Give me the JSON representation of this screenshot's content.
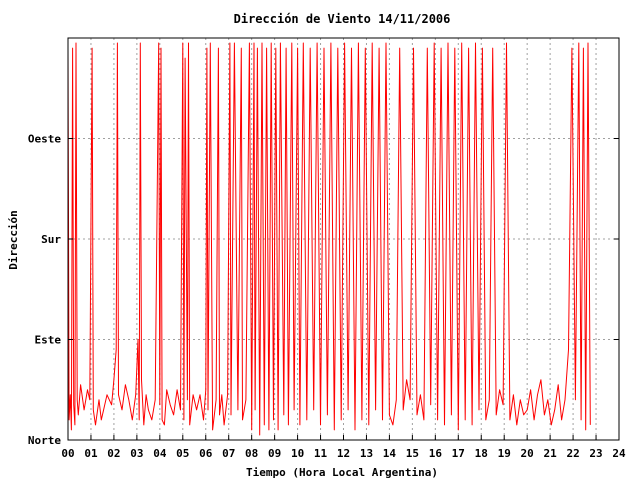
{
  "chart_data": {
    "type": "line",
    "title": "Dirección de Viento 14/11/2006",
    "xlabel": "Tiempo (Hora Local Argentina)",
    "ylabel": "Dirección",
    "xlim": [
      0,
      24
    ],
    "ylim": [
      0,
      400
    ],
    "x_ticks": [
      "00",
      "01",
      "02",
      "03",
      "04",
      "05",
      "06",
      "07",
      "08",
      "09",
      "10",
      "11",
      "12",
      "13",
      "14",
      "15",
      "16",
      "17",
      "18",
      "19",
      "20",
      "21",
      "22",
      "23",
      "24"
    ],
    "y_ticks": [
      {
        "label": "Norte",
        "value": 0
      },
      {
        "label": "Este",
        "value": 100
      },
      {
        "label": "Sur",
        "value": 200
      },
      {
        "label": "Oeste",
        "value": 300
      }
    ],
    "grid": true,
    "series": [
      {
        "color": "#ff0000",
        "description": "Wind direction, 1-minute resolution; frequent wraps between North (0) and ~400",
        "points": [
          [
            0.0,
            390
          ],
          [
            0.05,
            20
          ],
          [
            0.1,
            45
          ],
          [
            0.15,
            10
          ],
          [
            0.2,
            390
          ],
          [
            0.25,
            35
          ],
          [
            0.3,
            15
          ],
          [
            0.35,
            395
          ],
          [
            0.4,
            40
          ],
          [
            0.45,
            25
          ],
          [
            0.55,
            55
          ],
          [
            0.7,
            30
          ],
          [
            0.85,
            50
          ],
          [
            0.95,
            40
          ],
          [
            1.05,
            390
          ],
          [
            1.1,
            30
          ],
          [
            1.2,
            15
          ],
          [
            1.35,
            40
          ],
          [
            1.45,
            20
          ],
          [
            1.55,
            30
          ],
          [
            1.7,
            45
          ],
          [
            1.9,
            35
          ],
          [
            2.0,
            60
          ],
          [
            2.1,
            90
          ],
          [
            2.15,
            395
          ],
          [
            2.2,
            45
          ],
          [
            2.35,
            30
          ],
          [
            2.5,
            55
          ],
          [
            2.65,
            40
          ],
          [
            2.8,
            20
          ],
          [
            2.95,
            45
          ],
          [
            3.05,
            100
          ],
          [
            3.1,
            20
          ],
          [
            3.15,
            395
          ],
          [
            3.2,
            60
          ],
          [
            3.3,
            15
          ],
          [
            3.4,
            45
          ],
          [
            3.5,
            30
          ],
          [
            3.65,
            20
          ],
          [
            3.8,
            40
          ],
          [
            3.95,
            395
          ],
          [
            4.0,
            35
          ],
          [
            4.05,
            390
          ],
          [
            4.1,
            20
          ],
          [
            4.2,
            15
          ],
          [
            4.3,
            50
          ],
          [
            4.45,
            35
          ],
          [
            4.6,
            25
          ],
          [
            4.75,
            50
          ],
          [
            4.9,
            30
          ],
          [
            5.0,
            395
          ],
          [
            5.05,
            20
          ],
          [
            5.1,
            380
          ],
          [
            5.2,
            40
          ],
          [
            5.25,
            395
          ],
          [
            5.3,
            15
          ],
          [
            5.45,
            45
          ],
          [
            5.6,
            30
          ],
          [
            5.75,
            45
          ],
          [
            5.9,
            20
          ],
          [
            6.0,
            50
          ],
          [
            6.05,
            390
          ],
          [
            6.1,
            30
          ],
          [
            6.2,
            395
          ],
          [
            6.3,
            10
          ],
          [
            6.45,
            40
          ],
          [
            6.55,
            390
          ],
          [
            6.6,
            25
          ],
          [
            6.7,
            45
          ],
          [
            6.8,
            15
          ],
          [
            6.95,
            45
          ],
          [
            7.05,
            395
          ],
          [
            7.1,
            25
          ],
          [
            7.25,
            395
          ],
          [
            7.4,
            30
          ],
          [
            7.55,
            390
          ],
          [
            7.6,
            20
          ],
          [
            7.75,
            40
          ],
          [
            7.9,
            395
          ],
          [
            8.0,
            10
          ],
          [
            8.1,
            395
          ],
          [
            8.15,
            30
          ],
          [
            8.25,
            390
          ],
          [
            8.35,
            5
          ],
          [
            8.45,
            395
          ],
          [
            8.55,
            15
          ],
          [
            8.65,
            390
          ],
          [
            8.75,
            10
          ],
          [
            8.85,
            395
          ],
          [
            8.95,
            20
          ],
          [
            9.05,
            390
          ],
          [
            9.15,
            10
          ],
          [
            9.25,
            395
          ],
          [
            9.4,
            25
          ],
          [
            9.5,
            390
          ],
          [
            9.6,
            15
          ],
          [
            9.75,
            395
          ],
          [
            9.85,
            30
          ],
          [
            10.0,
            390
          ],
          [
            10.1,
            15
          ],
          [
            10.25,
            395
          ],
          [
            10.4,
            20
          ],
          [
            10.55,
            390
          ],
          [
            10.7,
            30
          ],
          [
            10.85,
            395
          ],
          [
            11.0,
            15
          ],
          [
            11.15,
            390
          ],
          [
            11.3,
            25
          ],
          [
            11.45,
            395
          ],
          [
            11.6,
            10
          ],
          [
            11.75,
            390
          ],
          [
            11.9,
            20
          ],
          [
            12.05,
            395
          ],
          [
            12.2,
            30
          ],
          [
            12.35,
            390
          ],
          [
            12.5,
            10
          ],
          [
            12.65,
            395
          ],
          [
            12.8,
            20
          ],
          [
            12.95,
            390
          ],
          [
            13.1,
            15
          ],
          [
            13.25,
            395
          ],
          [
            13.4,
            30
          ],
          [
            13.55,
            390
          ],
          [
            13.7,
            20
          ],
          [
            13.85,
            395
          ],
          [
            14.0,
            25
          ],
          [
            14.15,
            15
          ],
          [
            14.3,
            40
          ],
          [
            14.45,
            390
          ],
          [
            14.6,
            30
          ],
          [
            14.75,
            60
          ],
          [
            14.9,
            40
          ],
          [
            15.05,
            390
          ],
          [
            15.2,
            25
          ],
          [
            15.35,
            45
          ],
          [
            15.5,
            20
          ],
          [
            15.65,
            390
          ],
          [
            15.8,
            35
          ],
          [
            15.95,
            395
          ],
          [
            16.1,
            20
          ],
          [
            16.25,
            390
          ],
          [
            16.4,
            15
          ],
          [
            16.55,
            395
          ],
          [
            16.7,
            25
          ],
          [
            16.85,
            390
          ],
          [
            17.0,
            10
          ],
          [
            17.15,
            395
          ],
          [
            17.3,
            20
          ],
          [
            17.45,
            390
          ],
          [
            17.6,
            15
          ],
          [
            17.75,
            395
          ],
          [
            17.9,
            30
          ],
          [
            18.05,
            390
          ],
          [
            18.2,
            20
          ],
          [
            18.35,
            40
          ],
          [
            18.5,
            390
          ],
          [
            18.65,
            25
          ],
          [
            18.8,
            50
          ],
          [
            18.95,
            35
          ],
          [
            19.1,
            395
          ],
          [
            19.25,
            20
          ],
          [
            19.4,
            45
          ],
          [
            19.55,
            15
          ],
          [
            19.7,
            40
          ],
          [
            19.85,
            25
          ],
          [
            20.0,
            30
          ],
          [
            20.15,
            50
          ],
          [
            20.3,
            20
          ],
          [
            20.45,
            45
          ],
          [
            20.6,
            60
          ],
          [
            20.75,
            25
          ],
          [
            20.9,
            40
          ],
          [
            21.05,
            15
          ],
          [
            21.2,
            30
          ],
          [
            21.35,
            55
          ],
          [
            21.5,
            20
          ],
          [
            21.65,
            40
          ],
          [
            21.8,
            90
          ],
          [
            21.95,
            390
          ],
          [
            22.1,
            40
          ],
          [
            22.25,
            395
          ],
          [
            22.35,
            20
          ],
          [
            22.45,
            390
          ],
          [
            22.55,
            10
          ],
          [
            22.65,
            395
          ],
          [
            22.75,
            15
          ]
        ]
      }
    ]
  }
}
